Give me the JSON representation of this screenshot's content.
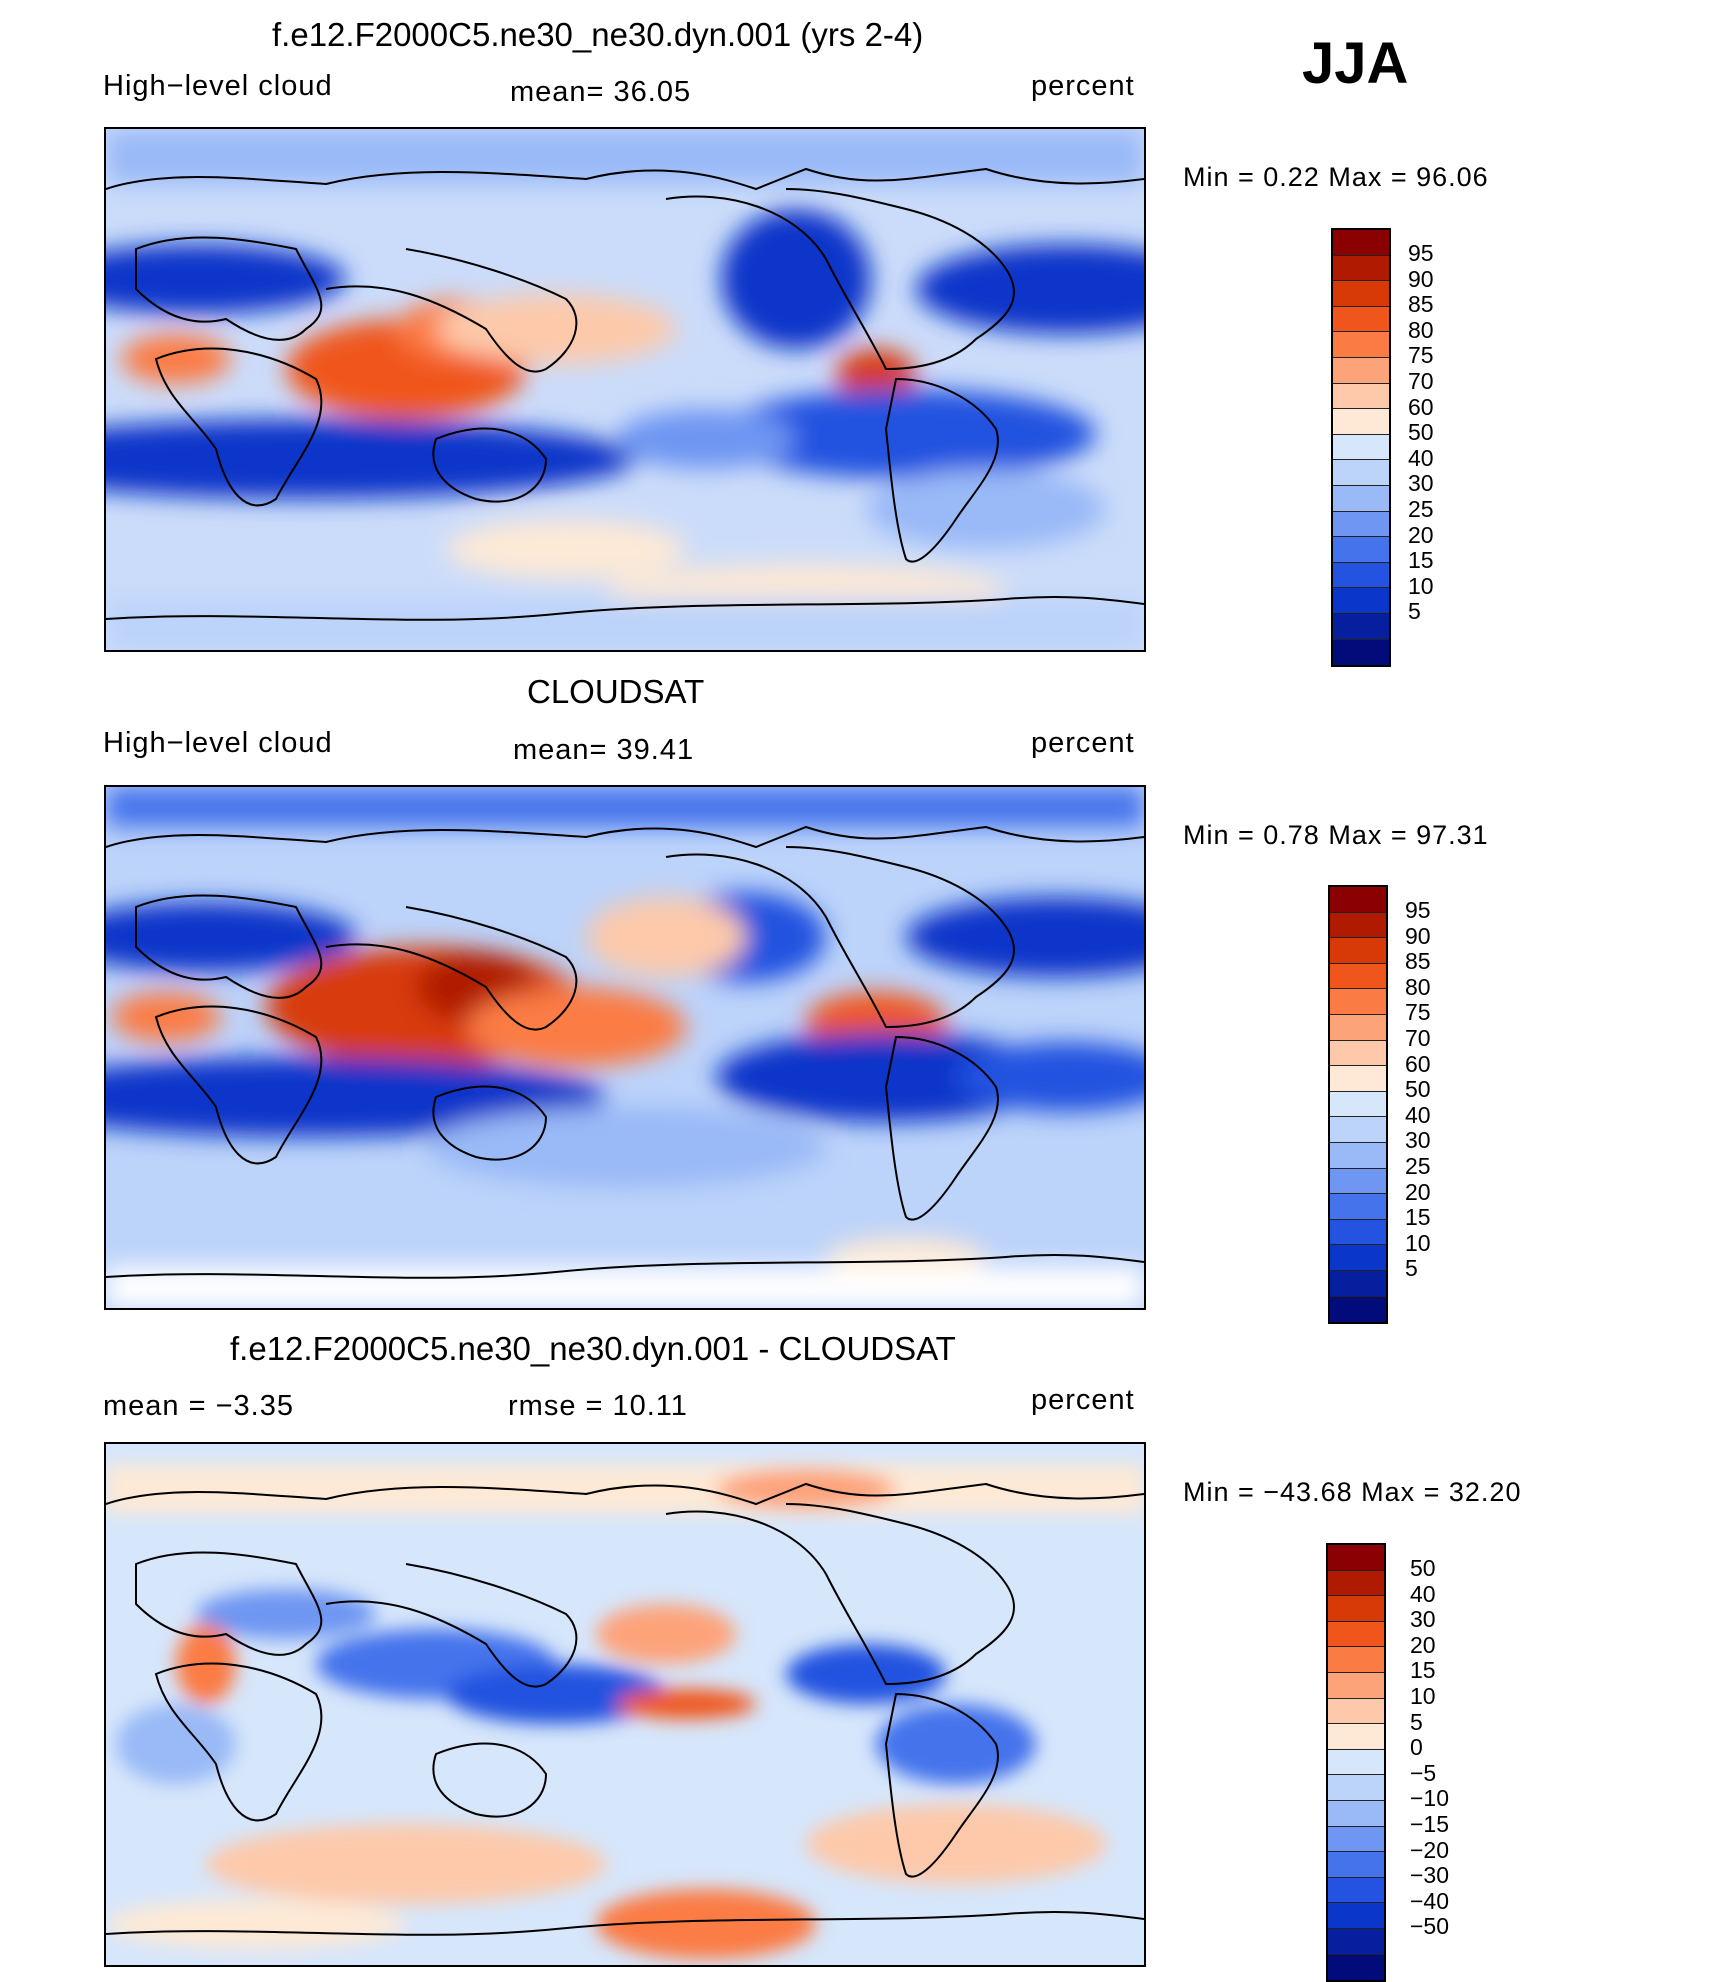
{
  "season": "JJA",
  "panels": [
    {
      "title": "f.e12.F2000C5.ne30_ne30.dyn.001 (yrs 2-4)",
      "left_label": "High−level cloud",
      "center_label": "mean=   36.05",
      "right_label": "percent",
      "minmax": "Min  =     0.22  Max  =    96.06",
      "colorbar": {
        "colors": [
          "#8b0000",
          "#b01a00",
          "#d83a07",
          "#f0561b",
          "#fb7b45",
          "#fda37a",
          "#fdc9aa",
          "#fde9d6",
          "#d6e6fb",
          "#bcd3fa",
          "#99b9f7",
          "#6e96f2",
          "#4573ec",
          "#2353e0",
          "#0a36c9",
          "#051f9f",
          "#010c7a"
        ],
        "labels": [
          "95",
          "90",
          "85",
          "80",
          "75",
          "70",
          "60",
          "50",
          "40",
          "30",
          "25",
          "20",
          "15",
          "10",
          "5"
        ]
      }
    },
    {
      "title": "CLOUDSAT",
      "left_label": "High−level cloud",
      "center_label": "mean=   39.41",
      "right_label": "percent",
      "minmax": "Min  =     0.78  Max  =    97.31",
      "colorbar": {
        "colors": [
          "#8b0000",
          "#b01a00",
          "#d83a07",
          "#f0561b",
          "#fb7b45",
          "#fda37a",
          "#fdc9aa",
          "#fde9d6",
          "#d6e6fb",
          "#bcd3fa",
          "#99b9f7",
          "#6e96f2",
          "#4573ec",
          "#2353e0",
          "#0a36c9",
          "#051f9f",
          "#010c7a"
        ],
        "labels": [
          "95",
          "90",
          "85",
          "80",
          "75",
          "70",
          "60",
          "50",
          "40",
          "30",
          "25",
          "20",
          "15",
          "10",
          "5"
        ]
      }
    },
    {
      "title": "f.e12.F2000C5.ne30_ne30.dyn.001 - CLOUDSAT",
      "left_label": "mean  =    −3.35",
      "center_label": "rmse  =    10.11",
      "right_label": "percent",
      "minmax": "Min  =  −43.68  Max  =    32.20",
      "colorbar": {
        "colors": [
          "#8b0000",
          "#b01a00",
          "#d83a07",
          "#f0561b",
          "#fb7b45",
          "#fda37a",
          "#fdc9aa",
          "#fde9d6",
          "#d6e6fb",
          "#bcd3fa",
          "#99b9f7",
          "#6e96f2",
          "#4573ec",
          "#2353e0",
          "#0a36c9",
          "#051f9f",
          "#010c7a"
        ],
        "labels": [
          "50",
          "40",
          "30",
          "20",
          "15",
          "10",
          "5",
          "0",
          "−5",
          "−10",
          "−15",
          "−20",
          "−30",
          "−40",
          "−50"
        ]
      }
    }
  ]
}
